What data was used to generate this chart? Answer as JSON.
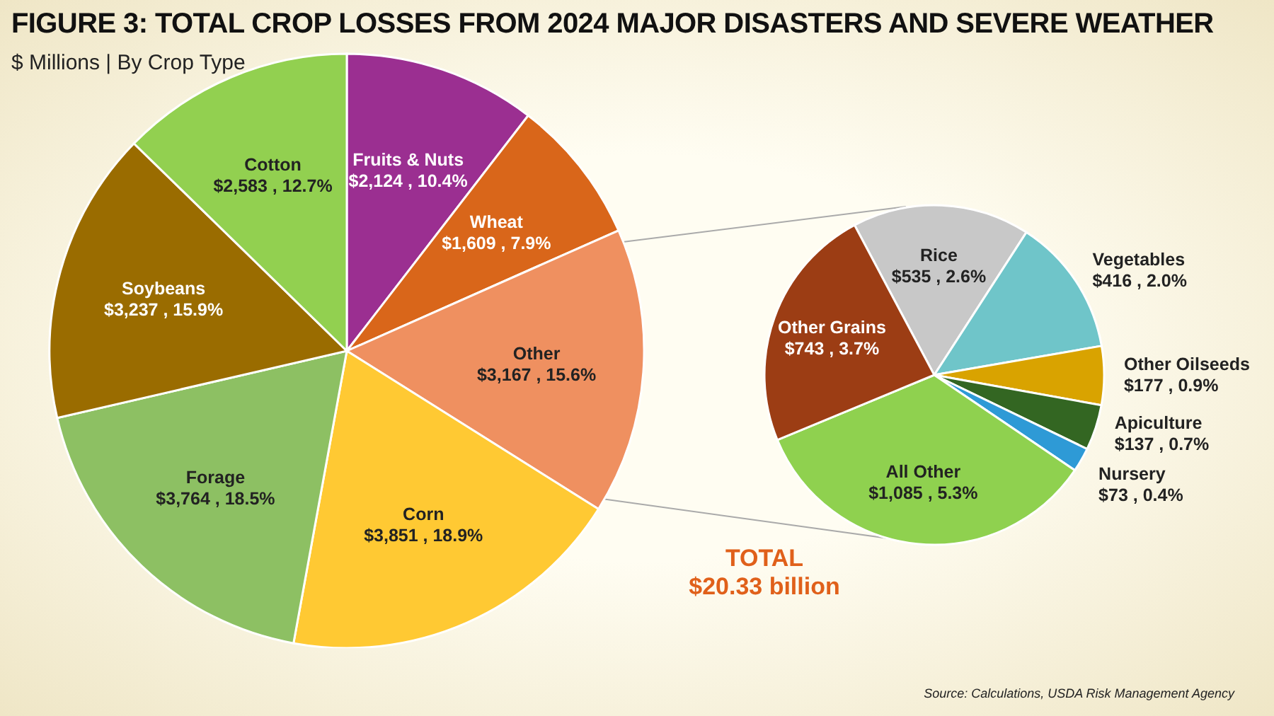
{
  "chart_data": [
    {
      "type": "pie",
      "title": "FIGURE 3: TOTAL CROP LOSSES FROM 2024 MAJOR DISASTERS AND SEVERE WEATHER",
      "subtitle": "$ Millions | By Crop Type",
      "categories": [
        "Fruits & Nuts",
        "Wheat",
        "Other",
        "Corn",
        "Forage",
        "Soybeans",
        "Cotton"
      ],
      "values": [
        2124,
        1609,
        3167,
        3851,
        3764,
        3237,
        2583
      ],
      "value_labels": [
        "$2,124 , 10.4%",
        "$1,609 , 7.9%",
        "$3,167 , 15.6%",
        "$3,851 , 18.9%",
        "$3,764 , 18.5%",
        "$3,237 , 15.9%",
        "$2,583 , 12.7%"
      ],
      "colors": [
        "#9b2f91",
        "#d9661a",
        "#ef9060",
        "#ffc933",
        "#8dc063",
        "#9a6c00",
        "#92d050"
      ],
      "annotations": [
        "TOTAL",
        "$20.33 billion",
        "Source: Calculations, USDA Risk Management Agency"
      ]
    },
    {
      "type": "pie",
      "categories": [
        "Rice",
        "Vegetables",
        "Other Oilseeds",
        "Apiculture",
        "Nursery",
        "All Other",
        "Other Grains"
      ],
      "values": [
        535,
        416,
        177,
        137,
        73,
        1085,
        743
      ],
      "value_labels": [
        "$535 , 2.6%",
        "$416 , 2.0%",
        "$177 , 0.9%",
        "$137 , 0.7%",
        "$73 , 0.4%",
        "$1,085 , 5.3%",
        "$743 , 3.7%"
      ],
      "colors": [
        "#c8c8c8",
        "#6fc5c9",
        "#d9a300",
        "#336622",
        "#2e9ad6",
        "#8fd14f",
        "#9c3d14"
      ]
    }
  ]
}
